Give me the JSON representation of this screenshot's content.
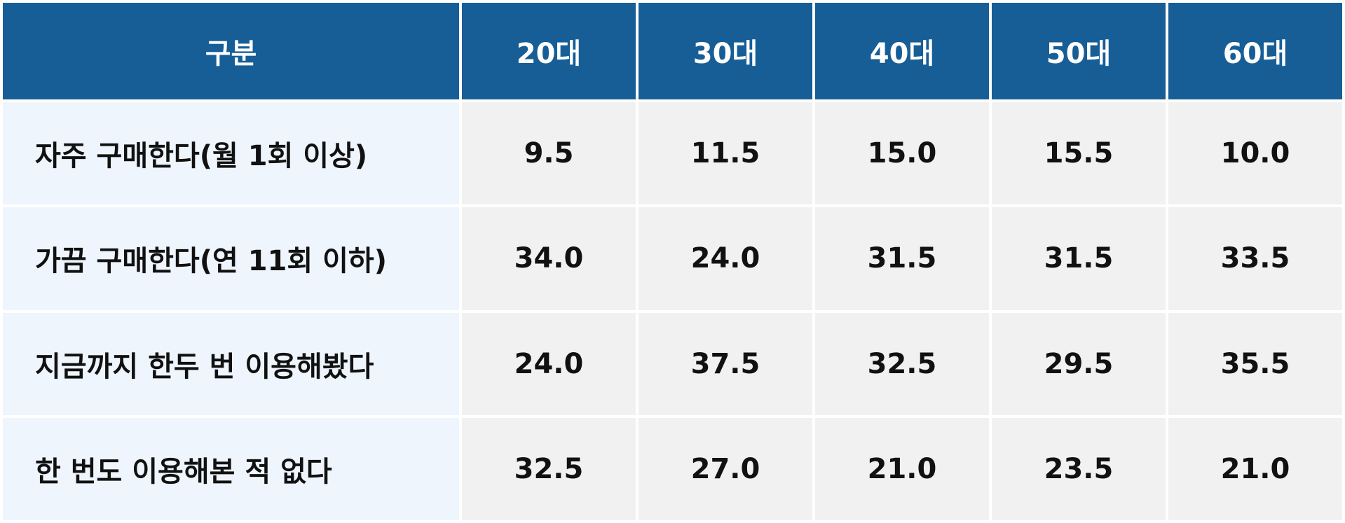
{
  "table": {
    "header": [
      "구분",
      "20대",
      "30대",
      "40대",
      "50대",
      "60대"
    ],
    "rows": [
      [
        "자주 구매한다(월 1회 이상)",
        "9.5",
        "11.5",
        "15.0",
        "15.5",
        "10.0"
      ],
      [
        "가끔 구매한다(연 11회 이하)",
        "34.0",
        "24.0",
        "31.5",
        "31.5",
        "33.5"
      ],
      [
        "지금까지 한두 번 이용해봤다",
        "24.0",
        "37.5",
        "32.5",
        "29.5",
        "35.5"
      ],
      [
        "한 번도 이용해본 적 없다",
        "32.5",
        "27.0",
        "21.0",
        "23.5",
        "21.0"
      ]
    ]
  }
}
